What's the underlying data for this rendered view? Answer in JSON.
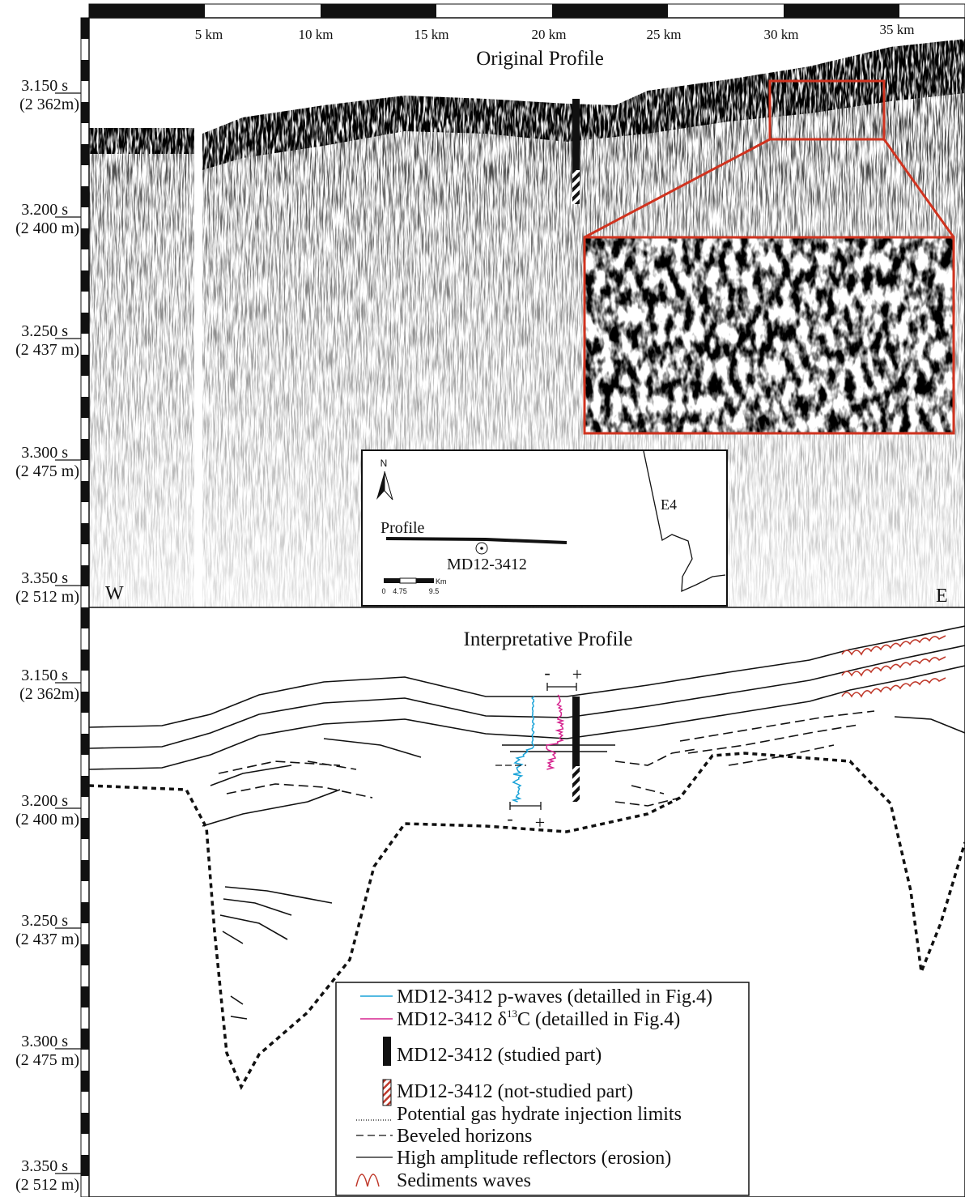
{
  "scale_bar": {
    "km_labels": [
      "5 km",
      "10 km",
      "15 km",
      "20 km",
      "25 km",
      "30 km",
      "35 km"
    ]
  },
  "original_profile": {
    "title": "Original Profile",
    "depth_labels": [
      {
        "time": "3.150 s",
        "depth": "(2 362m)"
      },
      {
        "time": "3.200 s",
        "depth": "(2 400 m)"
      },
      {
        "time": "3.250 s",
        "depth": "(2 437 m)"
      },
      {
        "time": "3.300 s",
        "depth": "(2 475 m)"
      },
      {
        "time": "3.350 s",
        "depth": "(2 512 m)"
      }
    ],
    "west": "W",
    "east": "E",
    "location_map": {
      "north": "N",
      "profile": "Profile",
      "core": "MD12-3412",
      "site": "E4",
      "scale_labels": [
        "0",
        "4.75",
        "9.5"
      ],
      "scale_unit": "Km"
    }
  },
  "interpretative_profile": {
    "title": "Interpretative Profile",
    "depth_labels": [
      {
        "time": "3.150 s",
        "depth": "(2 362m)"
      },
      {
        "time": "3.200 s",
        "depth": "(2 400 m)"
      },
      {
        "time": "3.250 s",
        "depth": "(2 437 m)"
      },
      {
        "time": "3.300 s",
        "depth": "(2 475 m)"
      },
      {
        "time": "3.350 s",
        "depth": "(2 512 m)"
      }
    ],
    "top_range": {
      "minus": "-",
      "plus": "+"
    },
    "bottom_range": {
      "minus": "-",
      "plus": "+"
    },
    "legend": [
      {
        "label": "MD12-3412 p-waves (detailled in Fig.4)"
      },
      {
        "label": "MD12-3412 δ",
        "superscript": "13",
        "label_end": "C (detailled in Fig.4)"
      },
      {
        "label": "MD12-3412 (studied part)"
      },
      {
        "label": "MD12-3412 (not-studied part)"
      },
      {
        "label": "Potential gas hydrate injection limits"
      },
      {
        "label": "Beveled horizons"
      },
      {
        "label": "High amplitude reflectors (erosion)"
      },
      {
        "label": "Sediments waves"
      }
    ]
  }
}
